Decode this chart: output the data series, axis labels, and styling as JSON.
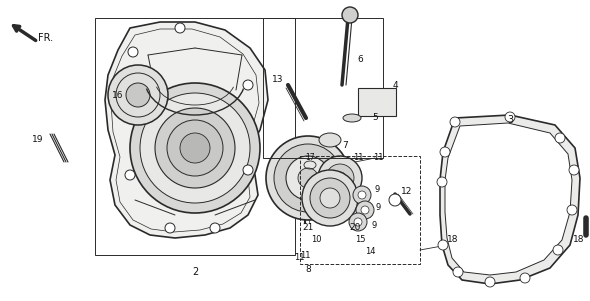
{
  "bg_color": "#f8f8f6",
  "line_color": "#2a2a2a",
  "fig_width": 5.9,
  "fig_height": 3.01,
  "dpi": 100,
  "cover_fill": "#f0f0ee",
  "part_fill": "#e8e8e6",
  "gasket_fill": "#ebebea"
}
